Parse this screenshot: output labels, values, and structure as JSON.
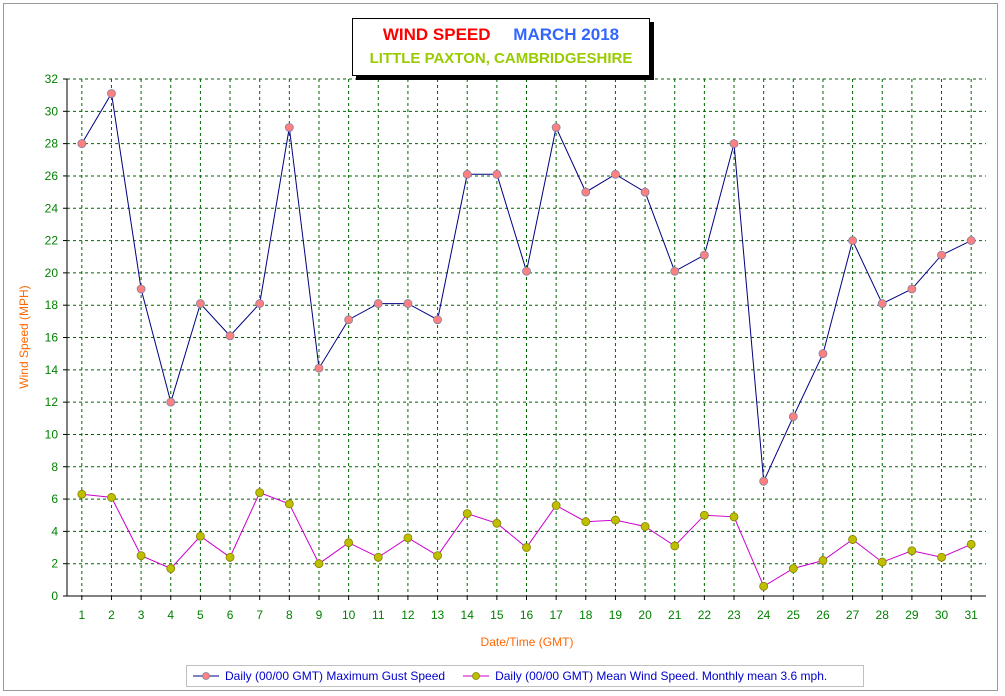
{
  "title": {
    "main": "WIND SPEED",
    "month": "MARCH 2018",
    "location": "LITTLE PAXTON, CAMBRIDGESHIRE"
  },
  "colors": {
    "gust_line": "#000080",
    "gust_marker": "#ff8080",
    "mean_line": "#cc00cc",
    "mean_marker": "#bfbf00",
    "grid": "#006400",
    "tick_text": "#008000",
    "axis_label": "#ff6600"
  },
  "chart_data": {
    "type": "line",
    "xlabel": "Date/Time (GMT)",
    "ylabel": "Wind Speed (MPH)",
    "ylim": [
      0,
      32
    ],
    "ytick_step": 2,
    "grid": true,
    "legend_position": "bottom",
    "categories": [
      "1",
      "2",
      "3",
      "4",
      "5",
      "6",
      "7",
      "8",
      "9",
      "10",
      "11",
      "12",
      "13",
      "14",
      "15",
      "16",
      "17",
      "18",
      "19",
      "20",
      "21",
      "22",
      "23",
      "24",
      "25",
      "26",
      "27",
      "28",
      "29",
      "30",
      "31"
    ],
    "series": [
      {
        "name": "Daily (00/00 GMT) Maximum Gust Speed",
        "values": [
          28,
          31.1,
          19,
          12,
          18.1,
          16.1,
          18.1,
          29,
          14.1,
          17.1,
          18.1,
          18.1,
          17.1,
          26.1,
          26.1,
          20.1,
          29,
          25,
          26.1,
          25,
          20.1,
          21.1,
          28,
          7.1,
          11.1,
          15,
          22,
          18.1,
          19,
          21.1,
          22
        ]
      },
      {
        "name": "Daily (00/00 GMT) Mean Wind Speed. Monthly mean 3.6 mph.",
        "values": [
          6.3,
          6.1,
          2.5,
          1.7,
          3.7,
          2.4,
          6.4,
          5.7,
          2.0,
          3.3,
          2.4,
          3.6,
          2.5,
          5.1,
          4.5,
          3.0,
          5.6,
          4.6,
          4.7,
          4.3,
          3.1,
          5.0,
          4.9,
          0.6,
          1.7,
          2.2,
          3.5,
          2.1,
          2.8,
          2.4,
          3.2
        ]
      }
    ]
  }
}
